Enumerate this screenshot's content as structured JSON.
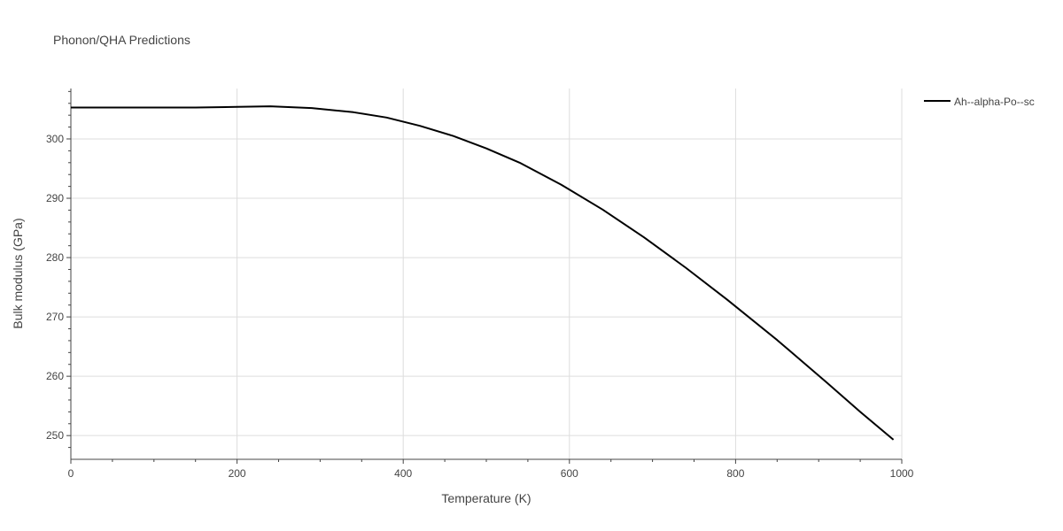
{
  "chart_data": {
    "type": "line",
    "title": "Phonon/QHA Predictions",
    "xlabel": "Temperature (K)",
    "ylabel": "Bulk modulus (GPa)",
    "xlim": [
      0,
      1000
    ],
    "ylim": [
      246,
      308.5
    ],
    "x_ticks": [
      0,
      200,
      400,
      600,
      800,
      1000
    ],
    "y_ticks": [
      250,
      260,
      270,
      280,
      290,
      300
    ],
    "grid": true,
    "legend_position": "top-right",
    "series": [
      {
        "name": "Ah--alpha-Po--sc",
        "color": "#000000",
        "x": [
          0,
          50,
          100,
          150,
          200,
          240,
          290,
          340,
          380,
          420,
          460,
          500,
          540,
          590,
          640,
          690,
          740,
          790,
          850,
          910,
          950,
          990
        ],
        "y": [
          305.3,
          305.3,
          305.3,
          305.3,
          305.4,
          305.5,
          305.2,
          304.5,
          303.6,
          302.2,
          300.5,
          298.4,
          296.0,
          292.3,
          288.1,
          283.4,
          278.3,
          272.9,
          266.1,
          258.9,
          254.0,
          249.3
        ]
      }
    ]
  }
}
